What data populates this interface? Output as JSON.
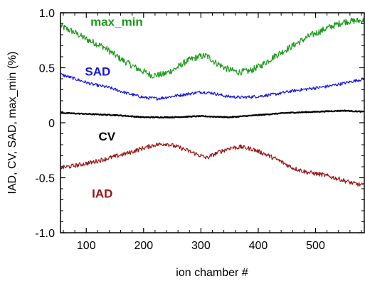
{
  "chart_data": {
    "type": "line",
    "xlabel": "ion chamber #",
    "ylabel": "IAD, CV, SAD, max_min (%)",
    "xlim": [
      55,
      585
    ],
    "ylim": [
      -1.0,
      1.0
    ],
    "x_ticks": [
      100,
      200,
      300,
      400,
      500
    ],
    "y_ticks": [
      {
        "value": 1.0,
        "label": "1.0"
      },
      {
        "value": 0.5,
        "label": "0.5"
      },
      {
        "value": 0,
        "label": "0"
      },
      {
        "value": -0.5,
        "label": "-0.5"
      },
      {
        "value": -1.0,
        "label": "-1.0"
      }
    ],
    "grid": false,
    "series": [
      {
        "name": "max_min",
        "color": "#1a9a1a",
        "noise": 0.03,
        "points": [
          [
            55,
            0.88
          ],
          [
            80,
            0.82
          ],
          [
            100,
            0.76
          ],
          [
            130,
            0.69
          ],
          [
            160,
            0.58
          ],
          [
            190,
            0.49
          ],
          [
            215,
            0.43
          ],
          [
            235,
            0.44
          ],
          [
            255,
            0.49
          ],
          [
            275,
            0.56
          ],
          [
            295,
            0.6
          ],
          [
            310,
            0.61
          ],
          [
            325,
            0.55
          ],
          [
            345,
            0.49
          ],
          [
            365,
            0.46
          ],
          [
            385,
            0.47
          ],
          [
            405,
            0.52
          ],
          [
            430,
            0.61
          ],
          [
            460,
            0.7
          ],
          [
            490,
            0.79
          ],
          [
            520,
            0.86
          ],
          [
            550,
            0.92
          ],
          [
            585,
            0.93
          ]
        ]
      },
      {
        "name": "SAD",
        "color": "#1616e0",
        "noise": 0.014,
        "points": [
          [
            55,
            0.44
          ],
          [
            80,
            0.4
          ],
          [
            110,
            0.35
          ],
          [
            140,
            0.32
          ],
          [
            170,
            0.27
          ],
          [
            200,
            0.23
          ],
          [
            225,
            0.22
          ],
          [
            250,
            0.24
          ],
          [
            275,
            0.26
          ],
          [
            300,
            0.28
          ],
          [
            320,
            0.27
          ],
          [
            345,
            0.24
          ],
          [
            370,
            0.23
          ],
          [
            400,
            0.24
          ],
          [
            430,
            0.26
          ],
          [
            460,
            0.29
          ],
          [
            490,
            0.31
          ],
          [
            520,
            0.33
          ],
          [
            550,
            0.36
          ],
          [
            585,
            0.4
          ]
        ]
      },
      {
        "name": "CV",
        "color": "#000000",
        "noise": 0.004,
        "points": [
          [
            55,
            0.09
          ],
          [
            100,
            0.08
          ],
          [
            150,
            0.07
          ],
          [
            200,
            0.05
          ],
          [
            250,
            0.05
          ],
          [
            300,
            0.06
          ],
          [
            350,
            0.05
          ],
          [
            400,
            0.07
          ],
          [
            450,
            0.09
          ],
          [
            500,
            0.1
          ],
          [
            550,
            0.11
          ],
          [
            585,
            0.1
          ]
        ]
      },
      {
        "name": "IAD",
        "color": "#9b1414",
        "noise": 0.02,
        "points": [
          [
            55,
            -0.41
          ],
          [
            80,
            -0.39
          ],
          [
            110,
            -0.36
          ],
          [
            140,
            -0.32
          ],
          [
            170,
            -0.28
          ],
          [
            200,
            -0.23
          ],
          [
            220,
            -0.2
          ],
          [
            240,
            -0.19
          ],
          [
            265,
            -0.23
          ],
          [
            290,
            -0.28
          ],
          [
            310,
            -0.32
          ],
          [
            330,
            -0.27
          ],
          [
            350,
            -0.23
          ],
          [
            370,
            -0.22
          ],
          [
            390,
            -0.24
          ],
          [
            410,
            -0.28
          ],
          [
            435,
            -0.34
          ],
          [
            460,
            -0.41
          ],
          [
            485,
            -0.45
          ],
          [
            510,
            -0.47
          ],
          [
            540,
            -0.51
          ],
          [
            565,
            -0.55
          ],
          [
            585,
            -0.57
          ]
        ]
      }
    ],
    "annotations": [
      {
        "text": "max_min",
        "color": "#1a9a1a",
        "x": 153,
        "y": 0.88
      },
      {
        "text": "SAD",
        "color": "#1616e0",
        "x": 120,
        "y": 0.43
      },
      {
        "text": "CV",
        "color": "#000000",
        "x": 136,
        "y": -0.16
      },
      {
        "text": "IAD",
        "color": "#9b1414",
        "x": 128,
        "y": -0.68
      }
    ]
  }
}
